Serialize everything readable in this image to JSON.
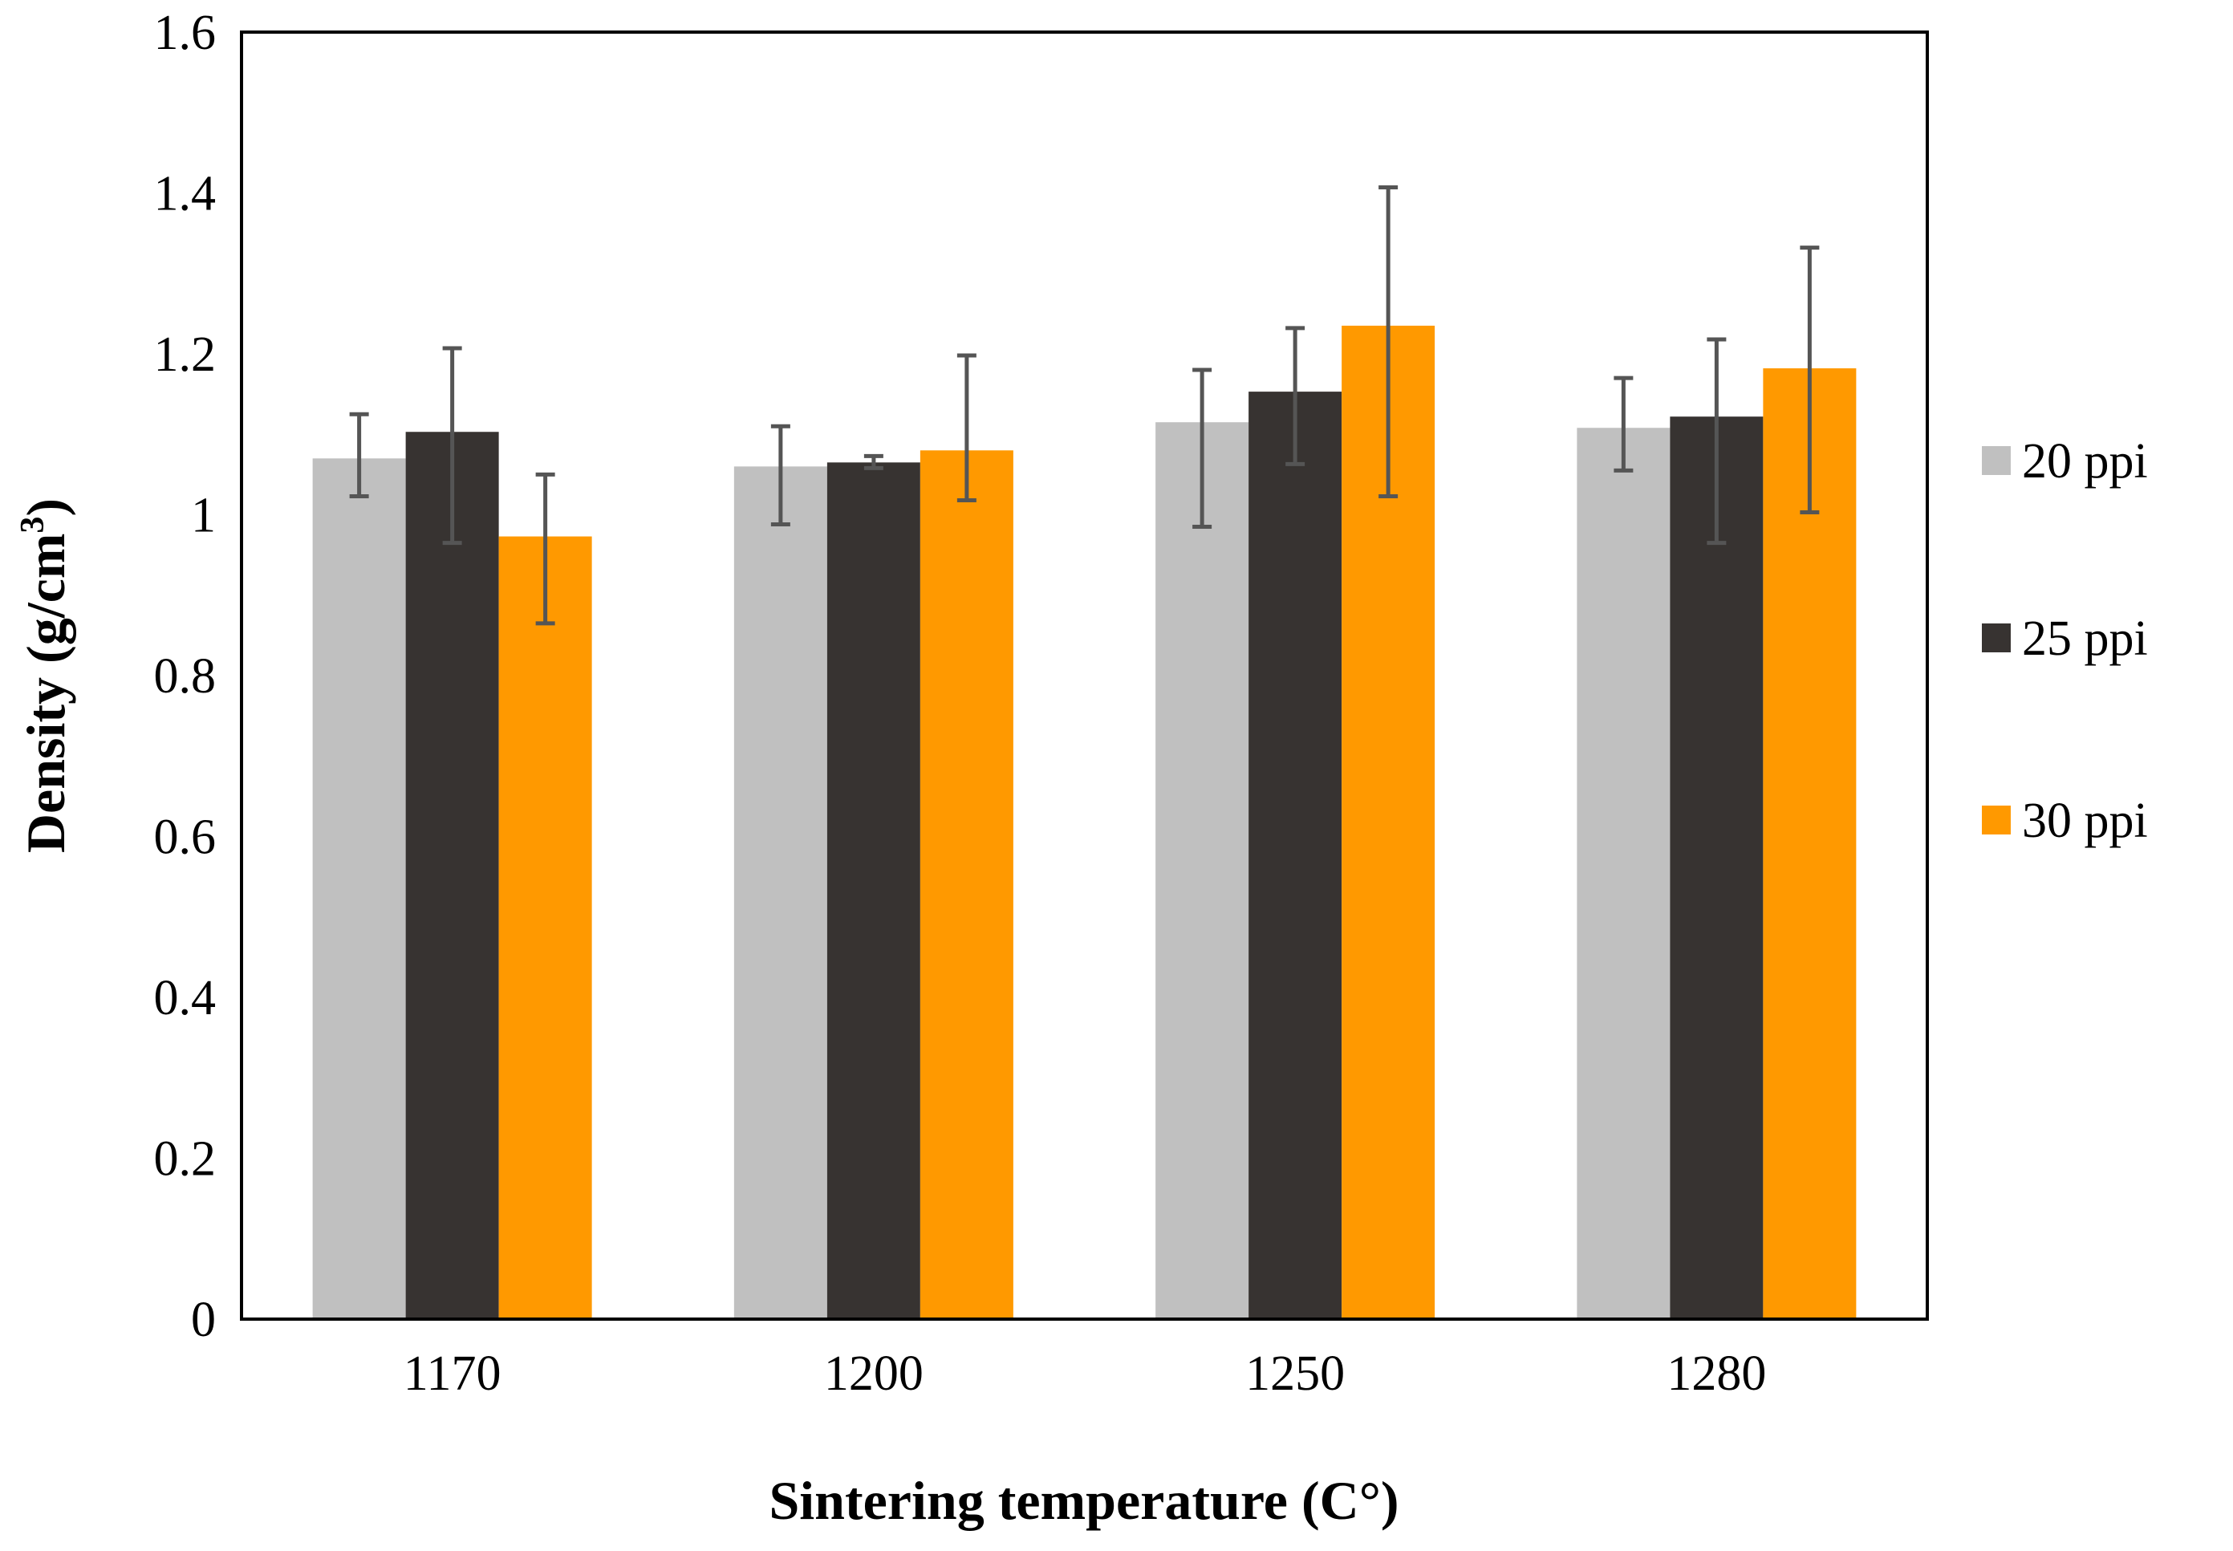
{
  "chart_data": {
    "type": "bar",
    "title": "",
    "xlabel": "Sintering temperature (C°)",
    "ylabel_main": "Density (g/cm",
    "ylabel_sup": "3",
    "ylabel_close": ")",
    "categories": [
      "1170",
      "1200",
      "1250",
      "1280"
    ],
    "ylim": [
      0,
      1.6
    ],
    "yticks": [
      0,
      0.2,
      0.4,
      0.6,
      0.8,
      1,
      1.2,
      1.4,
      1.6
    ],
    "ytick_labels": [
      "0",
      "0.2",
      "0.4",
      "0.6",
      "0.8",
      "1",
      "1.2",
      "1.4",
      "1.6"
    ],
    "grid": false,
    "legend_position": "right",
    "series": [
      {
        "name": "20 ppi",
        "color": "#c0c0c0",
        "values": [
          1.07,
          1.06,
          1.115,
          1.108
        ],
        "error_low": [
          1.023,
          0.988,
          0.985,
          1.055
        ],
        "error_high": [
          1.125,
          1.11,
          1.18,
          1.17
        ]
      },
      {
        "name": "25 ppi",
        "color": "#373331",
        "values": [
          1.103,
          1.065,
          1.153,
          1.122
        ],
        "error_low": [
          0.965,
          1.058,
          1.063,
          0.965
        ],
        "error_high": [
          1.207,
          1.073,
          1.232,
          1.218
        ]
      },
      {
        "name": "30 ppi",
        "color": "#ff9900",
        "values": [
          0.973,
          1.08,
          1.235,
          1.182
        ],
        "error_low": [
          0.865,
          1.018,
          1.023,
          1.003
        ],
        "error_high": [
          1.05,
          1.198,
          1.407,
          1.332
        ]
      }
    ],
    "errorbar_color": "#555555"
  }
}
